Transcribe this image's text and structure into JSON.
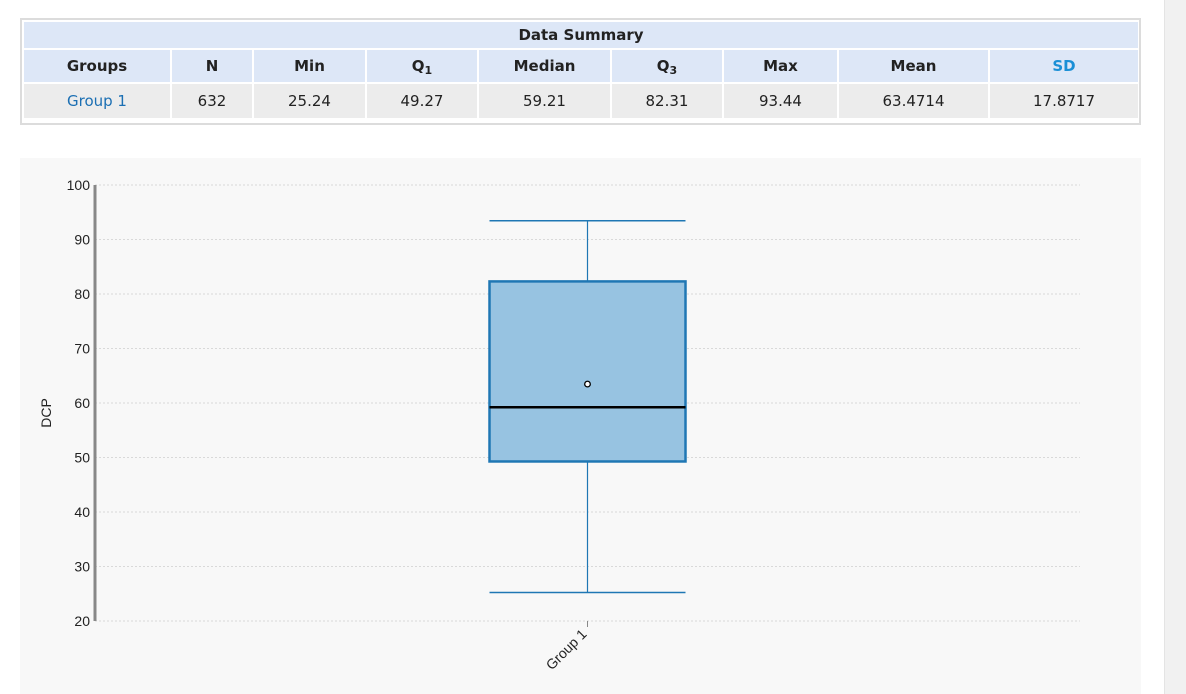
{
  "summary": {
    "caption": "Data Summary",
    "headers": {
      "groups": "Groups",
      "n": "N",
      "min": "Min",
      "q1_letter": "Q",
      "q1_sub": "1",
      "median": "Median",
      "q3_letter": "Q",
      "q3_sub": "3",
      "max": "Max",
      "mean": "Mean",
      "sd": "SD"
    },
    "rows": [
      {
        "group": "Group 1",
        "n": "632",
        "min": "25.24",
        "q1": "49.27",
        "median": "59.21",
        "q3": "82.31",
        "max": "93.44",
        "mean": "63.4714",
        "sd": "17.8717"
      }
    ]
  },
  "colors": {
    "box_fill": "#97c3e1",
    "box_stroke": "#1f77b4",
    "median_line": "#000000",
    "axis": "#888888",
    "grid": "#d9d9d9",
    "sd_header": "#1a8fd6",
    "group_link": "#1b6fb3"
  },
  "chart_data": {
    "type": "box",
    "ylabel": "DCP",
    "ylim": [
      20,
      100
    ],
    "yticks": [
      "20",
      "30",
      "40",
      "50",
      "60",
      "70",
      "80",
      "90",
      "100"
    ],
    "grid": true,
    "categories": [
      "Group 1"
    ],
    "boxes": [
      {
        "name": "Group 1",
        "min": 25.24,
        "q1": 49.27,
        "median": 59.21,
        "q3": 82.31,
        "max": 93.44,
        "mean": 63.4714
      }
    ]
  }
}
